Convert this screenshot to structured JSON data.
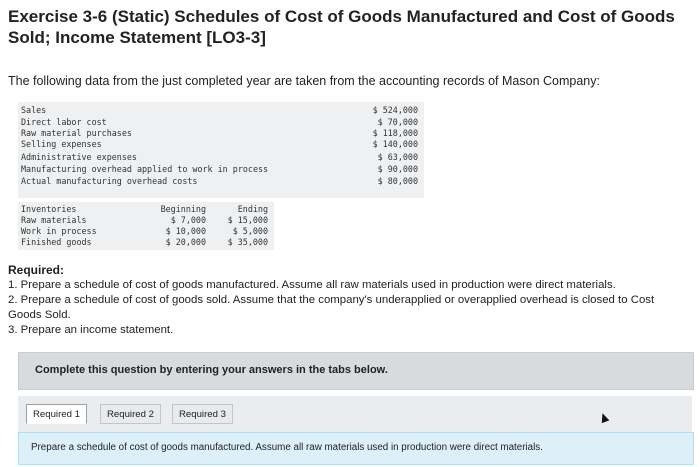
{
  "title": "Exercise 3-6 (Static) Schedules of Cost of Goods Manufactured and Cost of Goods Sold; Income Statement [LO3-3]",
  "intro": "The following data from the just completed year are taken from the accounting records of Mason Company:",
  "data_table": [
    {
      "label": "Sales",
      "value": "$ 524,000"
    },
    {
      "label": "Direct labor cost",
      "value": "$ 70,000"
    },
    {
      "label": "Raw material purchases",
      "value": "$ 118,000"
    },
    {
      "label": "Selling expenses",
      "value": "$ 140,000"
    },
    {
      "label": "Administrative expenses",
      "value": "$ 63,000"
    },
    {
      "label": "Manufacturing overhead applied to work in process",
      "value": "$ 90,000"
    },
    {
      "label": "Actual manufacturing overhead costs",
      "value": "$ 80,000"
    }
  ],
  "inventories": {
    "header": [
      "Inventories",
      "Beginning",
      "Ending"
    ],
    "rows": [
      [
        "Raw materials",
        "$ 7,000",
        "$ 15,000"
      ],
      [
        "Work in process",
        "$ 10,000",
        "$ 5,000"
      ],
      [
        "Finished goods",
        "$ 20,000",
        "$ 35,000"
      ]
    ]
  },
  "required": {
    "heading": "Required:",
    "lines": [
      "1. Prepare a schedule of cost of goods manufactured. Assume all raw materials used in production were direct materials.",
      "2. Prepare a schedule of cost of goods sold. Assume that the company's underapplied or overapplied overhead is closed to Cost",
      "Goods Sold.",
      "3. Prepare an income statement."
    ]
  },
  "instruction": "Complete this question by entering your answers in the tabs below.",
  "tabs": [
    {
      "label": "Required 1",
      "active": true
    },
    {
      "label": "Required 2",
      "active": false
    },
    {
      "label": "Required 3",
      "active": false
    }
  ],
  "panel_text": "Prepare a schedule of cost of goods manufactured. Assume all raw materials used in production were direct materials."
}
